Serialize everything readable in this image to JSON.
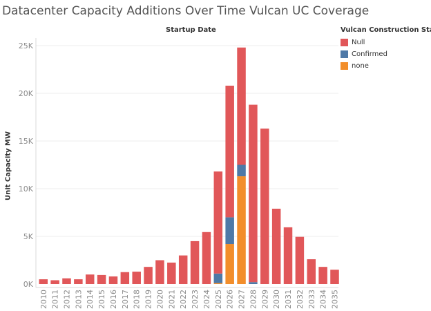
{
  "chart_data": {
    "type": "bar",
    "stacked": true,
    "title": "Datacenter Capacity Additions Over Time Vulcan UC Coverage",
    "x_header": "Startup Date",
    "ylabel": "Unit Capacity MW",
    "ylim": [
      0,
      25000
    ],
    "y_ticks": [
      0,
      5000,
      10000,
      15000,
      20000,
      25000
    ],
    "y_tick_labels": [
      "0K",
      "5K",
      "10K",
      "15K",
      "20K",
      "25K"
    ],
    "grid": true,
    "legend": {
      "title": "Vulcan Construction Status",
      "placement": "right"
    },
    "categories": [
      "2010",
      "2011",
      "2012",
      "2013",
      "2014",
      "2015",
      "2016",
      "2017",
      "2018",
      "2019",
      "2020",
      "2021",
      "2022",
      "2023",
      "2024",
      "2025",
      "2026",
      "2027",
      "2028",
      "2029",
      "2030",
      "2031",
      "2032",
      "2033",
      "2034",
      "2035"
    ],
    "series": [
      {
        "name": "none",
        "color": "#f28e2b",
        "values": [
          0,
          0,
          0,
          0,
          0,
          0,
          0,
          0,
          0,
          0,
          0,
          0,
          0,
          0,
          0,
          100,
          4200,
          11300,
          0,
          0,
          0,
          0,
          0,
          0,
          0,
          0
        ]
      },
      {
        "name": "Confirmed",
        "color": "#4e79a7",
        "values": [
          0,
          0,
          0,
          0,
          0,
          0,
          0,
          0,
          0,
          0,
          0,
          0,
          0,
          0,
          0,
          1000,
          2800,
          1200,
          200,
          0,
          0,
          0,
          0,
          0,
          0,
          0
        ]
      },
      {
        "name": "Null",
        "color": "#e15759",
        "values": [
          500,
          400,
          600,
          500,
          1000,
          950,
          800,
          1250,
          1300,
          1800,
          2500,
          2250,
          3000,
          4500,
          5450,
          10700,
          13800,
          12300,
          18600,
          16300,
          7900,
          5950,
          4950,
          2600,
          1800,
          1500
        ]
      }
    ]
  }
}
